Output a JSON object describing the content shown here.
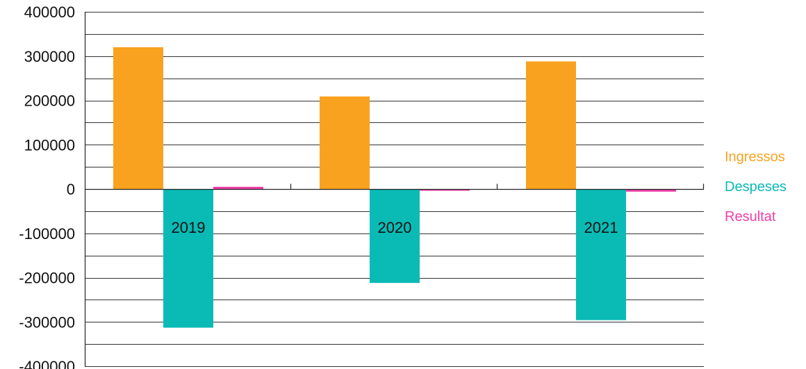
{
  "chart_data": {
    "type": "bar",
    "categories": [
      "2019",
      "2020",
      "2021"
    ],
    "series": [
      {
        "name": "Ingressos",
        "color": "#f9a21f",
        "values": [
          320000,
          209000,
          288000
        ]
      },
      {
        "name": "Despeses",
        "color": "#0abab5",
        "values": [
          -313000,
          -212000,
          -296000
        ]
      },
      {
        "name": "Resultat",
        "color": "#ef3ea8",
        "values": [
          5000,
          -2000,
          -6000
        ]
      }
    ],
    "ylim": [
      -400000,
      400000
    ],
    "y_ticks": [
      "400000",
      "300000",
      "200000",
      "100000",
      "0",
      "-100000",
      "-200000",
      "-300000",
      "-400000"
    ],
    "y_tick_values": [
      400000,
      300000,
      200000,
      100000,
      0,
      -100000,
      -200000,
      -300000,
      -400000
    ],
    "minor_gridlines": true,
    "legend_position": "right",
    "title": "",
    "xlabel": "",
    "ylabel": ""
  }
}
